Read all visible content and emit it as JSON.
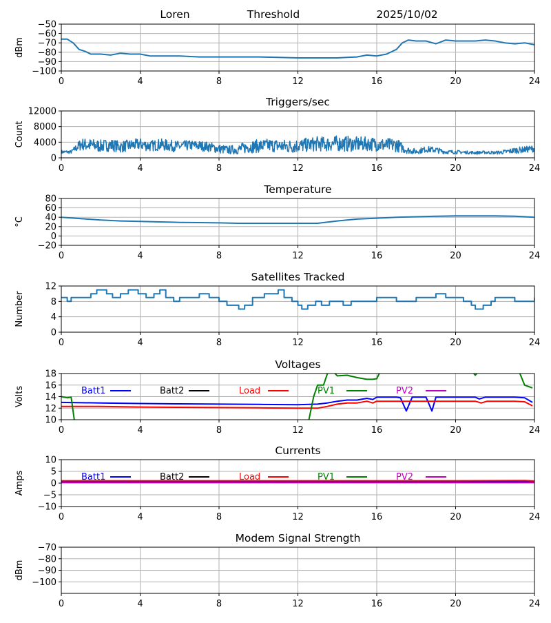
{
  "header": {
    "station": "Loren",
    "mode": "Threshold",
    "date": "2025/10/02"
  },
  "colors": {
    "series": "#1f77b4",
    "grid": "#b0b0b0",
    "batt1": "#0000ff",
    "batt2": "#000000",
    "load": "#ff0000",
    "pv1": "#008000",
    "pv2": "#bf00bf"
  },
  "chart_data": [
    {
      "id": "threshold",
      "type": "line",
      "title": "",
      "xlabel": "",
      "ylabel": "dBm",
      "xlim": [
        0,
        24
      ],
      "ylim": [
        -100,
        -50
      ],
      "xticks": [
        0,
        4,
        8,
        12,
        16,
        20,
        24
      ],
      "yticks": [
        -100,
        -90,
        -80,
        -70,
        -60,
        -50
      ],
      "series": [
        {
          "name": "Threshold",
          "color_key": "series",
          "x": [
            0,
            0.3,
            0.6,
            0.9,
            1.2,
            1.5,
            2,
            2.5,
            3,
            3.5,
            4,
            4.5,
            5,
            6,
            7,
            8,
            9,
            10,
            11,
            12,
            13,
            14,
            15,
            15.5,
            16,
            16.5,
            17,
            17.3,
            17.6,
            18,
            18.5,
            19,
            19.5,
            20,
            20.5,
            21,
            21.5,
            22,
            22.5,
            23,
            23.5,
            24
          ],
          "y": [
            -66,
            -66,
            -70,
            -77,
            -79,
            -82,
            -82,
            -83,
            -81,
            -82,
            -82,
            -84,
            -84,
            -84,
            -85,
            -85,
            -85,
            -85,
            -85.5,
            -86,
            -86,
            -86,
            -85,
            -83,
            -84,
            -82,
            -77,
            -70,
            -67,
            -68,
            -68,
            -71,
            -67,
            -68,
            -68,
            -68,
            -67,
            -68,
            -70,
            -71,
            -70,
            -72
          ]
        }
      ]
    },
    {
      "id": "triggers",
      "type": "line",
      "title": "Triggers/sec",
      "xlabel": "",
      "ylabel": "Count",
      "xlim": [
        0,
        24
      ],
      "ylim": [
        0,
        12000
      ],
      "xticks": [
        0,
        4,
        8,
        12,
        16,
        20,
        24
      ],
      "yticks": [
        0,
        4000,
        8000,
        12000
      ],
      "series": [
        {
          "name": "Triggers/sec",
          "color_key": "series",
          "x": [
            0,
            0.5,
            1,
            1.5,
            2,
            2.5,
            3,
            3.5,
            4,
            4.5,
            5,
            5.5,
            6,
            6.5,
            7,
            7.5,
            8,
            8.5,
            9,
            9.5,
            10,
            10.5,
            11,
            11.5,
            12,
            12.5,
            13,
            13.5,
            14,
            14.5,
            15,
            15.5,
            16,
            16.5,
            17,
            17.5,
            18,
            18.5,
            19,
            19.5,
            20,
            20.5,
            21,
            21.5,
            22,
            22.5,
            23,
            23.5,
            24
          ],
          "y": [
            1500,
            1500,
            3500,
            3200,
            3000,
            3300,
            2800,
            3200,
            3500,
            3000,
            3400,
            3100,
            2900,
            3200,
            3100,
            2800,
            2300,
            2000,
            2200,
            2800,
            3000,
            3200,
            3100,
            2900,
            3100,
            3300,
            3600,
            3500,
            3700,
            3600,
            3500,
            3600,
            3500,
            3200,
            3300,
            2000,
            1600,
            2200,
            2000,
            1500,
            1500,
            1400,
            1300,
            1400,
            1300,
            1500,
            1900,
            2100,
            2400
          ],
          "noise_amplitude": [
            500,
            400,
            1600,
            1700,
            1600,
            1600,
            1500,
            1500,
            1500,
            1400,
            1500,
            1500,
            1400,
            1300,
            1300,
            1300,
            1200,
            1100,
            1300,
            1600,
            1700,
            1700,
            1700,
            1800,
            1800,
            1800,
            1900,
            1900,
            2000,
            2000,
            1900,
            1800,
            1800,
            1800,
            1800,
            900,
            700,
            800,
            800,
            500,
            500,
            400,
            400,
            400,
            400,
            600,
            800,
            800,
            900
          ]
        }
      ]
    },
    {
      "id": "temperature",
      "type": "line",
      "title": "Temperature",
      "xlabel": "",
      "ylabel": "°C",
      "xlim": [
        0,
        24
      ],
      "ylim": [
        -20,
        80
      ],
      "xticks": [
        0,
        4,
        8,
        12,
        16,
        20,
        24
      ],
      "yticks": [
        -20,
        0,
        20,
        40,
        60,
        80
      ],
      "series": [
        {
          "name": "Temperature",
          "color_key": "series",
          "x": [
            0,
            1,
            2,
            3,
            4,
            5,
            6,
            7,
            8,
            9,
            10,
            11,
            12,
            13,
            14,
            15,
            16,
            17,
            18,
            19,
            20,
            21,
            22,
            23,
            24
          ],
          "y": [
            40,
            37,
            34,
            32,
            31,
            30,
            29,
            28.5,
            28,
            27,
            27,
            27,
            27,
            27,
            32,
            36,
            38,
            40,
            41,
            42,
            43,
            43,
            43,
            42,
            40
          ]
        }
      ]
    },
    {
      "id": "satellites",
      "type": "line",
      "title": "Satellites Tracked",
      "xlabel": "",
      "ylabel": "Number",
      "xlim": [
        0,
        24
      ],
      "ylim": [
        0,
        12
      ],
      "xticks": [
        0,
        4,
        8,
        12,
        16,
        20,
        24
      ],
      "yticks": [
        0,
        4,
        8,
        12
      ],
      "step": true,
      "series": [
        {
          "name": "Satellites Tracked",
          "color_key": "series",
          "x": [
            0,
            0.3,
            0.5,
            1,
            1.5,
            1.8,
            2.3,
            2.6,
            3,
            3.4,
            3.9,
            4,
            4.3,
            4.7,
            5,
            5.3,
            5.7,
            6,
            6.5,
            7,
            7.5,
            8,
            8.4,
            8.8,
            9,
            9.3,
            9.7,
            10,
            10.3,
            10.7,
            11,
            11.3,
            11.7,
            12,
            12.2,
            12.5,
            12.9,
            13.2,
            13.6,
            14,
            14.3,
            14.7,
            15,
            15.5,
            16,
            16.5,
            17,
            17.5,
            18,
            18.5,
            19,
            19.5,
            20,
            20.4,
            20.8,
            21,
            21.4,
            21.8,
            22,
            22.5,
            23,
            23.5,
            24
          ],
          "y": [
            9,
            8,
            9,
            9,
            10,
            11,
            10,
            9,
            10,
            11,
            10,
            10,
            9,
            10,
            11,
            9,
            8,
            9,
            9,
            10,
            9,
            8,
            7,
            7,
            6,
            7,
            9,
            9,
            10,
            10,
            11,
            9,
            8,
            7,
            6,
            7,
            8,
            7,
            8,
            8,
            7,
            8,
            8,
            8,
            9,
            9,
            8,
            8,
            9,
            9,
            10,
            9,
            9,
            8,
            7,
            6,
            7,
            8,
            9,
            9,
            8,
            8,
            9
          ]
        }
      ]
    },
    {
      "id": "voltages",
      "type": "line",
      "title": "Voltages",
      "xlabel": "",
      "ylabel": "Volts",
      "xlim": [
        0,
        24
      ],
      "ylim": [
        10,
        18
      ],
      "xticks": [
        0,
        4,
        8,
        12,
        16,
        20,
        24
      ],
      "yticks": [
        10,
        12,
        14,
        16,
        18
      ],
      "legend": [
        "Batt1",
        "Batt2",
        "Load",
        "PV1",
        "PV2"
      ],
      "series": [
        {
          "name": "Batt1",
          "color_key": "batt1",
          "x": [
            0,
            2,
            4,
            6,
            8,
            10,
            12,
            13,
            13.5,
            14,
            14.5,
            15,
            15.5,
            15.8,
            16,
            17,
            17.2,
            17.5,
            17.8,
            18,
            18.5,
            18.8,
            19,
            20,
            21,
            21.2,
            21.5,
            22,
            23,
            23.5,
            23.9
          ],
          "y": [
            13,
            12.9,
            12.8,
            12.75,
            12.7,
            12.65,
            12.6,
            12.7,
            12.9,
            13.2,
            13.4,
            13.4,
            13.7,
            13.5,
            13.9,
            13.9,
            13.8,
            11.5,
            13.9,
            13.9,
            13.9,
            11.5,
            13.9,
            13.9,
            13.9,
            13.6,
            13.9,
            13.9,
            13.9,
            13.8,
            13
          ]
        },
        {
          "name": "Batt2",
          "color_key": "batt2",
          "x": [],
          "y": []
        },
        {
          "name": "Load",
          "color_key": "load",
          "x": [
            0,
            2,
            4,
            6,
            8,
            10,
            12,
            13,
            13.5,
            14,
            14.5,
            15,
            15.5,
            15.8,
            16,
            17,
            18,
            19,
            20,
            21,
            21.3,
            21.6,
            22,
            23,
            23.5,
            23.9
          ],
          "y": [
            12.3,
            12.3,
            12.2,
            12.15,
            12.1,
            12.05,
            12,
            12,
            12.3,
            12.7,
            12.9,
            12.9,
            13.2,
            12.9,
            13.2,
            13.2,
            13.2,
            13.2,
            13.2,
            13.2,
            12.9,
            13.2,
            13.2,
            13.2,
            13.1,
            12.4
          ]
        },
        {
          "name": "PV1",
          "color_key": "pv1",
          "x": [
            0,
            0.3,
            0.5,
            0.7,
            12.5,
            12.8,
            13,
            13.3,
            13.5,
            13.8,
            14,
            14.5,
            15,
            15.5,
            15.8,
            16,
            16.2,
            20.8,
            21,
            21.2,
            23.2,
            23.5,
            23.9
          ],
          "y": [
            14,
            13.8,
            13.9,
            9,
            9,
            14,
            16,
            16,
            18,
            18.3,
            17.6,
            17.7,
            17.3,
            17,
            17,
            17.1,
            18.5,
            18.5,
            17.7,
            18.5,
            18.5,
            16,
            15.5
          ]
        },
        {
          "name": "PV2",
          "color_key": "pv2",
          "x": [],
          "y": []
        }
      ]
    },
    {
      "id": "currents",
      "type": "line",
      "title": "Currents",
      "xlabel": "",
      "ylabel": "Amps",
      "xlim": [
        0,
        24
      ],
      "ylim": [
        -10,
        10
      ],
      "xticks": [
        0,
        4,
        8,
        12,
        16,
        20,
        24
      ],
      "yticks": [
        -10,
        -5,
        0,
        5,
        10
      ],
      "legend": [
        "Batt1",
        "Batt2",
        "Load",
        "PV1",
        "PV2"
      ],
      "series": [
        {
          "name": "Batt1",
          "color_key": "batt1",
          "x": [
            0,
            24
          ],
          "y": [
            0.6,
            0.6
          ]
        },
        {
          "name": "Batt2",
          "color_key": "batt2",
          "x": [
            0,
            24
          ],
          "y": [
            0.3,
            0.3
          ]
        },
        {
          "name": "Load",
          "color_key": "load",
          "x": [
            0,
            4,
            8,
            12,
            16,
            20,
            23.5,
            24
          ],
          "y": [
            1.0,
            1.0,
            1.0,
            1.0,
            1.0,
            1.0,
            1.1,
            0.9
          ]
        },
        {
          "name": "PV1",
          "color_key": "pv1",
          "x": [],
          "y": []
        },
        {
          "name": "PV2",
          "color_key": "pv2",
          "x": [
            0,
            24
          ],
          "y": [
            0.2,
            0.2
          ]
        }
      ]
    },
    {
      "id": "modem",
      "type": "line",
      "title": "Modem Signal Strength",
      "xlabel": "",
      "ylabel": "dBm",
      "xlim": [
        0,
        24
      ],
      "ylim": [
        -110,
        -70
      ],
      "xticks": [
        0,
        4,
        8,
        12,
        16,
        20,
        24
      ],
      "yticks": [
        -100,
        -90,
        -80,
        -70
      ],
      "series": []
    }
  ]
}
